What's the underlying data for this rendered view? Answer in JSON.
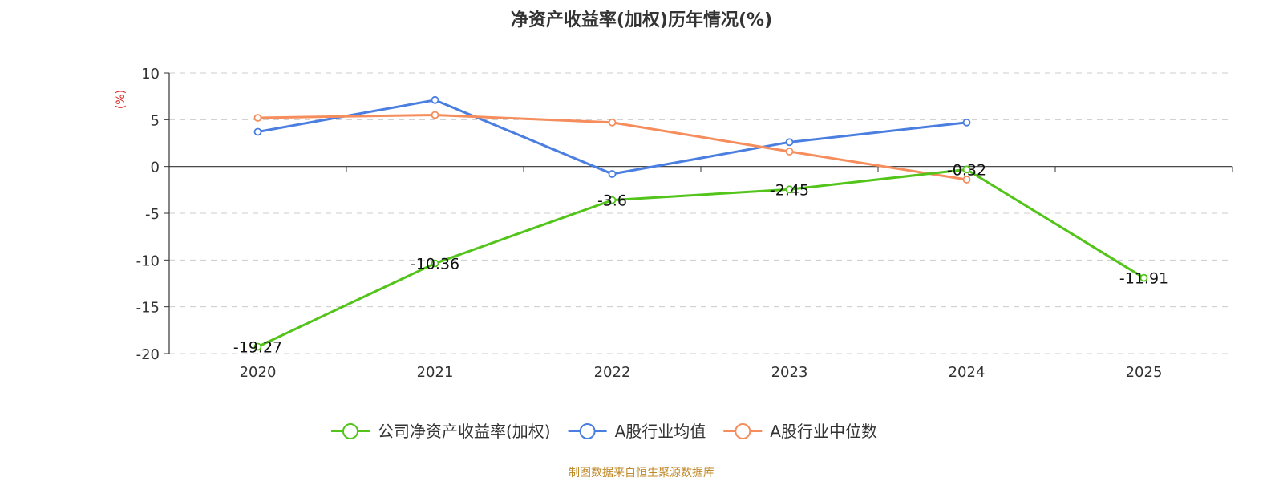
{
  "chart_data": {
    "type": "line",
    "title": "净资产收益率(加权)历年情况(%)",
    "ylabel": "(%)",
    "xlabel": "",
    "categories": [
      "2020",
      "2021",
      "2022",
      "2023",
      "2024",
      "2025"
    ],
    "ylim": [
      -20,
      10
    ],
    "yticks": [
      10,
      5,
      0,
      -5,
      -10,
      -15,
      -20
    ],
    "grid": true,
    "legend_position": "bottom",
    "series": [
      {
        "name": "公司净资产收益率(加权)",
        "color": "#52c41a",
        "values": [
          -19.27,
          -10.36,
          -3.6,
          -2.45,
          -0.32,
          -11.91
        ],
        "labels": [
          "-19.27",
          "-10.36",
          "-3.6",
          "-2.45",
          "-0.32",
          "-11.91"
        ]
      },
      {
        "name": "A股行业均值",
        "color": "#4a7ee0",
        "values": [
          3.7,
          7.1,
          -0.8,
          2.6,
          4.7,
          null
        ]
      },
      {
        "name": "A股行业中位数",
        "color": "#f68d5c",
        "values": [
          5.2,
          5.5,
          4.7,
          1.6,
          -1.4,
          null
        ]
      }
    ],
    "source": "制图数据来自恒生聚源数据库"
  }
}
